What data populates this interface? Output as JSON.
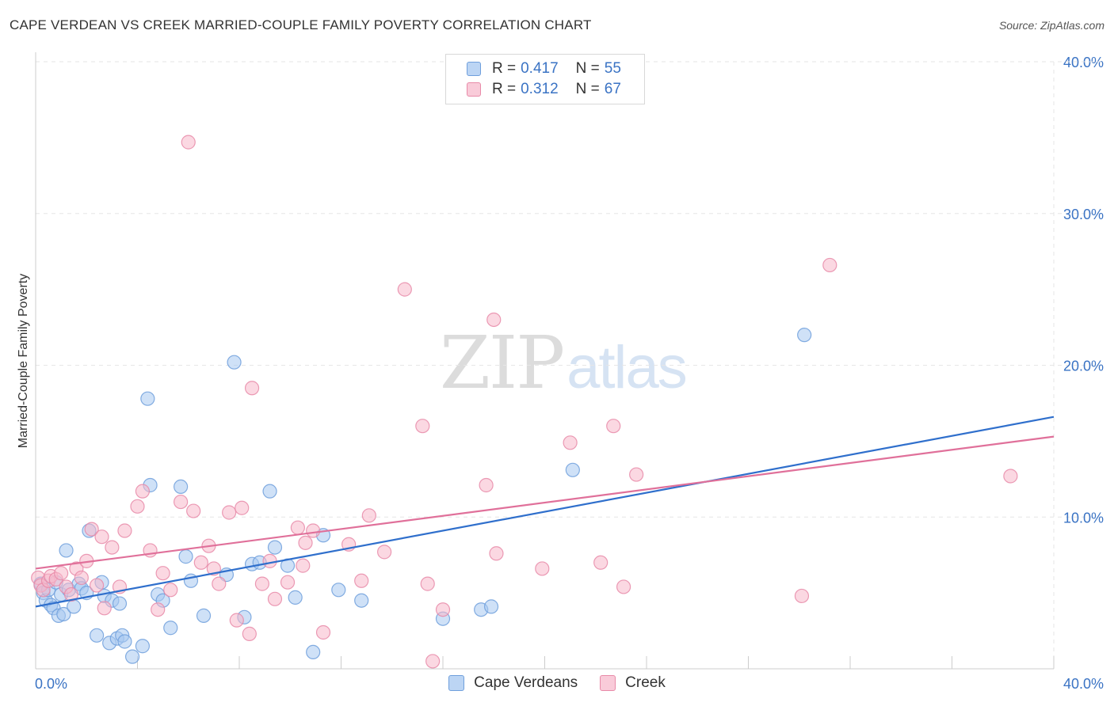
{
  "title": "CAPE VERDEAN VS CREEK MARRIED-COUPLE FAMILY POVERTY CORRELATION CHART",
  "source": "Source: ZipAtlas.com",
  "watermark": {
    "part1": "ZIP",
    "part2": "atlas"
  },
  "legend": {
    "rows": [
      {
        "r_label": "R =",
        "r_value": "0.417",
        "n_label": "N =",
        "n_value": "55"
      },
      {
        "r_label": "R =",
        "r_value": "0.312",
        "n_label": "N =",
        "n_value": "67"
      }
    ]
  },
  "bottom_legend": [
    "Cape Verdeans",
    "Creek"
  ],
  "colors": {
    "blue_fill": "#a8c8f0",
    "blue_stroke": "#6f9fdc",
    "blue_line": "#2f6fcc",
    "pink_fill": "#f7b8cb",
    "pink_stroke": "#e88aa8",
    "pink_line": "#e0709a",
    "tick_text": "#3a73c4",
    "grid": "#e6e6e6"
  },
  "chart_data": {
    "type": "scatter",
    "title": "CAPE VERDEAN VS CREEK MARRIED-COUPLE FAMILY POVERTY CORRELATION CHART",
    "xlabel": "",
    "ylabel": "Married-Couple Family Poverty",
    "xlim": [
      0,
      40
    ],
    "ylim": [
      0,
      40
    ],
    "x_tick_labels": [
      "0.0%",
      "40.0%"
    ],
    "y_ticks": [
      10,
      20,
      30,
      40
    ],
    "y_tick_labels": [
      "10.0%",
      "20.0%",
      "30.0%",
      "40.0%"
    ],
    "grid": true,
    "legend_position": "top-center",
    "series": [
      {
        "name": "Cape Verdeans",
        "color": "#6f9fdc",
        "trend": {
          "x": [
            0,
            40
          ],
          "y": [
            4.1,
            16.6
          ]
        },
        "points": [
          [
            0.2,
            5.6
          ],
          [
            0.3,
            5.0
          ],
          [
            0.4,
            4.5
          ],
          [
            0.5,
            5.2
          ],
          [
            0.6,
            4.2
          ],
          [
            0.7,
            4.0
          ],
          [
            0.8,
            5.7
          ],
          [
            0.9,
            3.5
          ],
          [
            1.0,
            4.9
          ],
          [
            1.1,
            3.6
          ],
          [
            1.2,
            7.8
          ],
          [
            1.3,
            5.2
          ],
          [
            1.5,
            4.1
          ],
          [
            1.7,
            5.6
          ],
          [
            1.8,
            5.3
          ],
          [
            2.0,
            5.0
          ],
          [
            2.1,
            9.1
          ],
          [
            2.4,
            2.2
          ],
          [
            2.6,
            5.7
          ],
          [
            2.7,
            4.8
          ],
          [
            2.9,
            1.7
          ],
          [
            3.0,
            4.5
          ],
          [
            3.2,
            2.0
          ],
          [
            3.3,
            4.3
          ],
          [
            3.4,
            2.2
          ],
          [
            3.5,
            1.8
          ],
          [
            3.8,
            0.8
          ],
          [
            4.2,
            1.5
          ],
          [
            4.4,
            17.8
          ],
          [
            4.5,
            12.1
          ],
          [
            4.8,
            4.9
          ],
          [
            5.0,
            4.5
          ],
          [
            5.3,
            2.7
          ],
          [
            5.7,
            12.0
          ],
          [
            5.9,
            7.4
          ],
          [
            6.1,
            5.8
          ],
          [
            6.6,
            3.5
          ],
          [
            7.5,
            6.2
          ],
          [
            7.8,
            20.2
          ],
          [
            8.2,
            3.4
          ],
          [
            8.5,
            6.9
          ],
          [
            8.8,
            7.0
          ],
          [
            9.2,
            11.7
          ],
          [
            9.4,
            8.0
          ],
          [
            9.9,
            6.8
          ],
          [
            10.2,
            4.7
          ],
          [
            10.9,
            1.1
          ],
          [
            11.3,
            8.8
          ],
          [
            11.9,
            5.2
          ],
          [
            12.8,
            4.5
          ],
          [
            16.0,
            3.3
          ],
          [
            17.5,
            3.9
          ],
          [
            17.9,
            4.1
          ],
          [
            21.1,
            13.1
          ],
          [
            30.2,
            22.0
          ]
        ]
      },
      {
        "name": "Creek",
        "color": "#e88aa8",
        "trend": {
          "x": [
            0,
            40
          ],
          "y": [
            6.6,
            15.3
          ]
        },
        "points": [
          [
            0.1,
            6.0
          ],
          [
            0.2,
            5.5
          ],
          [
            0.3,
            5.2
          ],
          [
            0.5,
            5.8
          ],
          [
            0.6,
            6.1
          ],
          [
            0.8,
            5.9
          ],
          [
            1.0,
            6.3
          ],
          [
            1.2,
            5.4
          ],
          [
            1.4,
            4.9
          ],
          [
            1.6,
            6.6
          ],
          [
            1.8,
            6.0
          ],
          [
            2.0,
            7.1
          ],
          [
            2.2,
            9.2
          ],
          [
            2.4,
            5.5
          ],
          [
            2.6,
            8.7
          ],
          [
            2.7,
            4.0
          ],
          [
            3.0,
            8.0
          ],
          [
            3.3,
            5.4
          ],
          [
            3.5,
            9.1
          ],
          [
            4.0,
            10.7
          ],
          [
            4.2,
            11.7
          ],
          [
            4.5,
            7.8
          ],
          [
            4.8,
            3.9
          ],
          [
            5.0,
            6.3
          ],
          [
            5.3,
            5.2
          ],
          [
            5.7,
            11.0
          ],
          [
            6.0,
            34.7
          ],
          [
            6.2,
            10.4
          ],
          [
            6.5,
            7.0
          ],
          [
            6.8,
            8.1
          ],
          [
            7.0,
            6.6
          ],
          [
            7.2,
            5.6
          ],
          [
            7.6,
            10.3
          ],
          [
            7.9,
            3.2
          ],
          [
            8.1,
            10.6
          ],
          [
            8.4,
            2.3
          ],
          [
            8.5,
            18.5
          ],
          [
            8.9,
            5.6
          ],
          [
            9.2,
            7.1
          ],
          [
            9.4,
            4.6
          ],
          [
            9.9,
            5.7
          ],
          [
            10.3,
            9.3
          ],
          [
            10.5,
            6.8
          ],
          [
            10.6,
            8.3
          ],
          [
            10.9,
            9.1
          ],
          [
            11.3,
            2.4
          ],
          [
            12.3,
            8.2
          ],
          [
            12.8,
            5.8
          ],
          [
            13.1,
            10.1
          ],
          [
            13.7,
            7.7
          ],
          [
            14.5,
            25.0
          ],
          [
            15.2,
            16.0
          ],
          [
            15.4,
            5.6
          ],
          [
            15.6,
            0.5
          ],
          [
            16.0,
            3.9
          ],
          [
            17.7,
            12.1
          ],
          [
            18.0,
            23.0
          ],
          [
            18.1,
            7.6
          ],
          [
            19.9,
            6.6
          ],
          [
            21.0,
            14.9
          ],
          [
            22.2,
            7.0
          ],
          [
            22.7,
            16.0
          ],
          [
            23.1,
            5.4
          ],
          [
            23.6,
            12.8
          ],
          [
            30.1,
            4.8
          ],
          [
            31.2,
            26.6
          ],
          [
            38.3,
            12.7
          ]
        ]
      }
    ]
  }
}
